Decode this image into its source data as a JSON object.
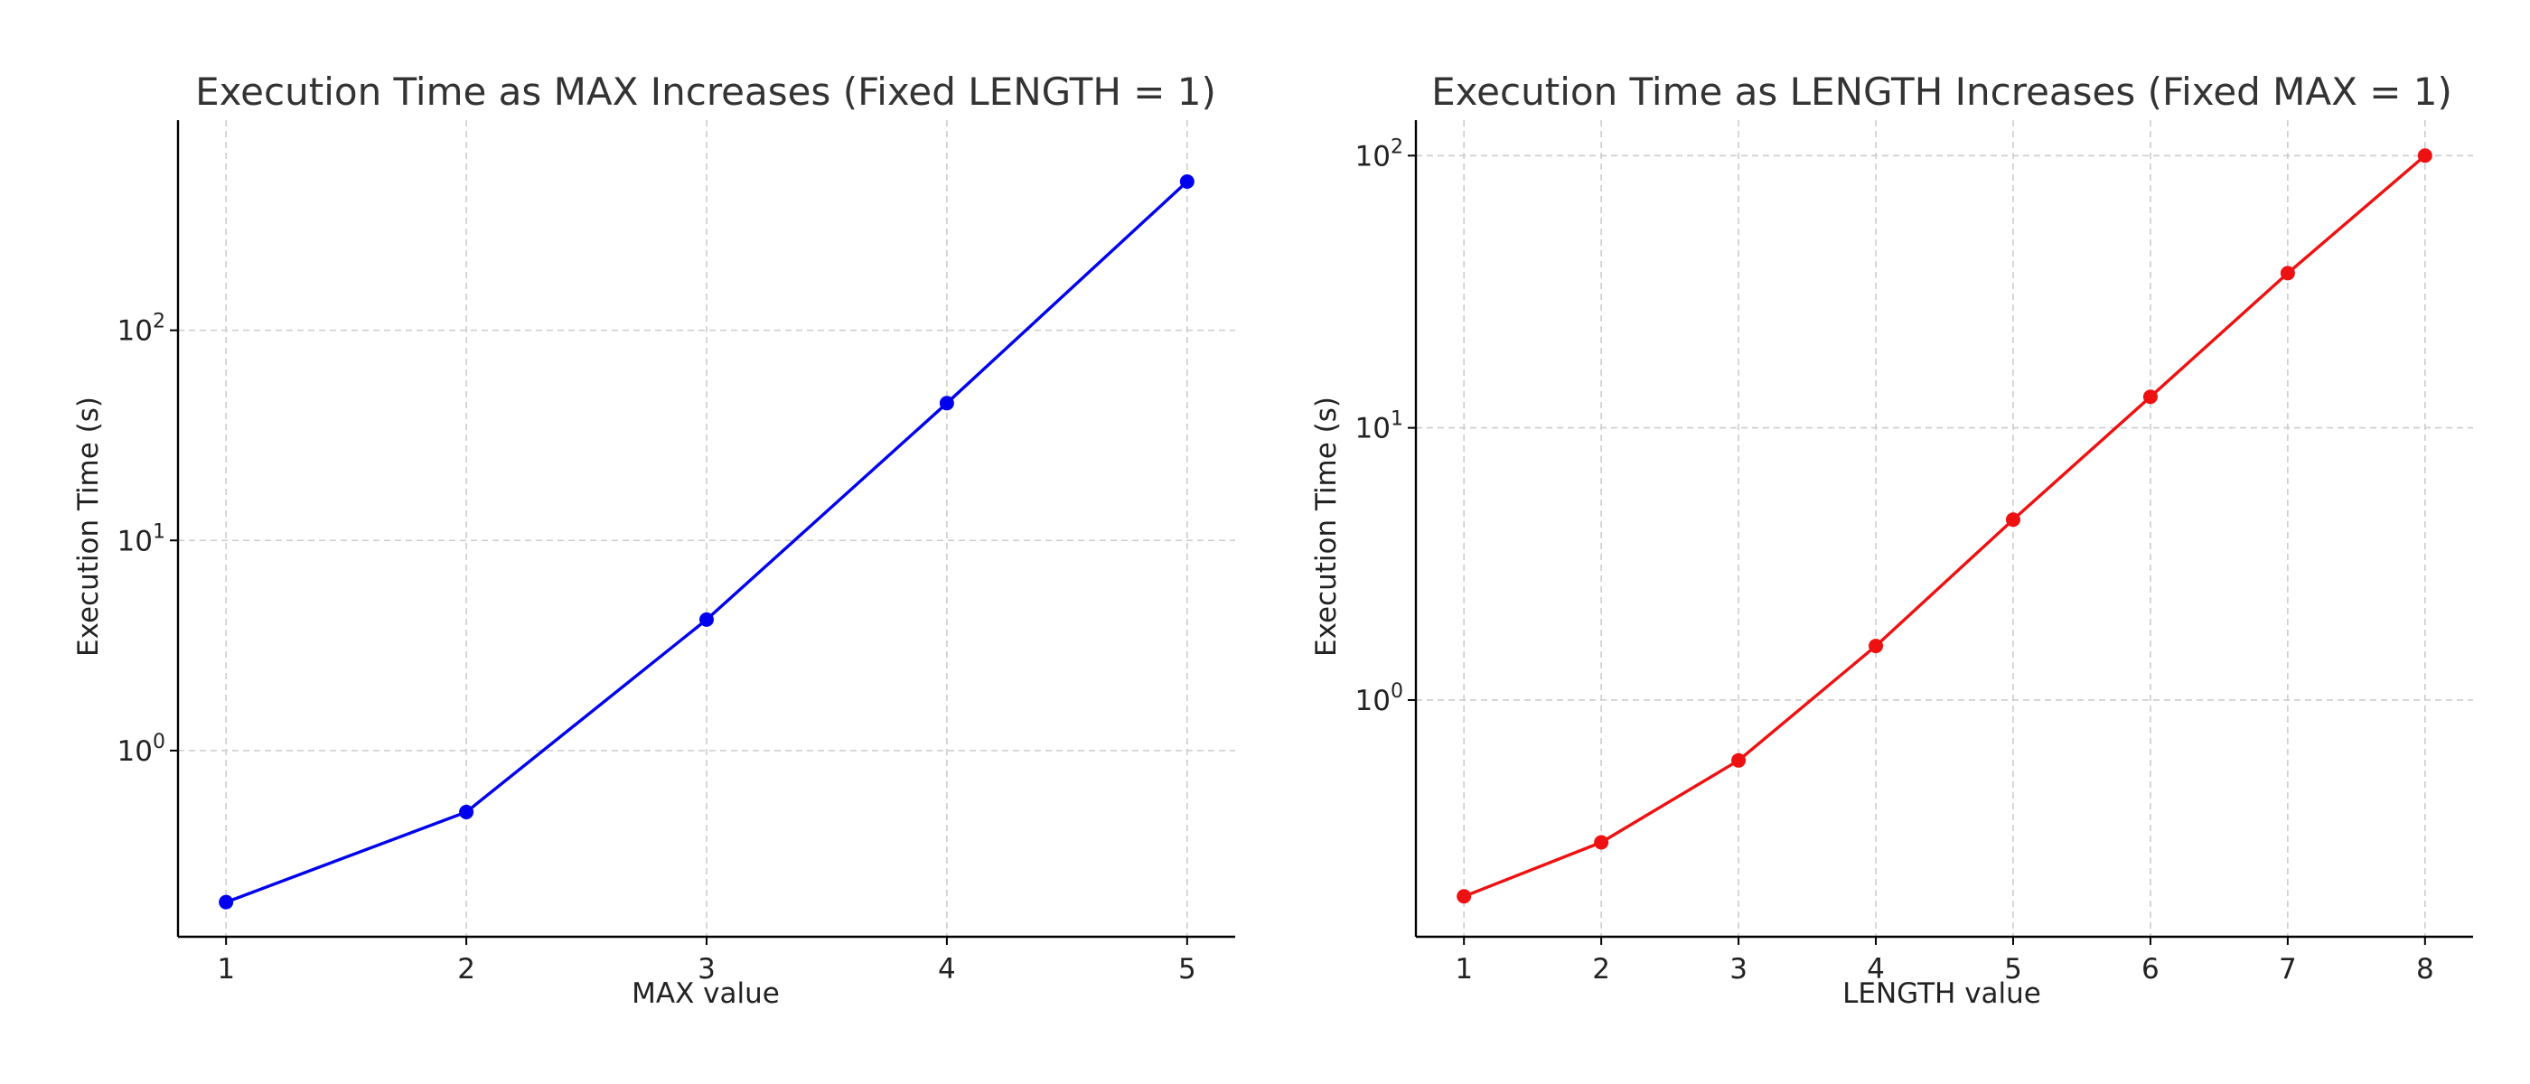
{
  "chart_data": [
    {
      "type": "line",
      "title": "Execution Time as MAX Increases (Fixed LENGTH = 1)",
      "xlabel": "MAX value",
      "ylabel": "Execution Time (s)",
      "yscale": "log",
      "grid": true,
      "x": [
        1,
        2,
        3,
        4,
        5
      ],
      "xlim": [
        0.8,
        5.2
      ],
      "ylim": [
        0.13,
        1000
      ],
      "xticks": [
        "1",
        "2",
        "3",
        "4",
        "5"
      ],
      "yticks": [
        {
          "value": 1,
          "base": "10",
          "exp": "0"
        },
        {
          "value": 10,
          "base": "10",
          "exp": "1"
        },
        {
          "value": 100,
          "base": "10",
          "exp": "2"
        }
      ],
      "series": [
        {
          "color": "#0000ee",
          "values": [
            0.19,
            0.51,
            4.2,
            45,
            510
          ]
        }
      ]
    },
    {
      "type": "line",
      "title": "Execution Time as LENGTH Increases (Fixed MAX = 1)",
      "xlabel": "LENGTH value",
      "ylabel": "Execution Time (s)",
      "yscale": "log",
      "grid": true,
      "x": [
        1,
        2,
        3,
        4,
        5,
        6,
        7,
        8
      ],
      "xlim": [
        0.65,
        8.35
      ],
      "ylim": [
        0.135,
        135
      ],
      "xticks": [
        "1",
        "2",
        "3",
        "4",
        "5",
        "6",
        "7",
        "8"
      ],
      "yticks": [
        {
          "value": 1,
          "base": "10",
          "exp": "0"
        },
        {
          "value": 10,
          "base": "10",
          "exp": "1"
        },
        {
          "value": 100,
          "base": "10",
          "exp": "2"
        }
      ],
      "series": [
        {
          "color": "#ee1111",
          "values": [
            0.19,
            0.3,
            0.6,
            1.58,
            4.6,
            13,
            37,
            100
          ]
        }
      ]
    }
  ]
}
